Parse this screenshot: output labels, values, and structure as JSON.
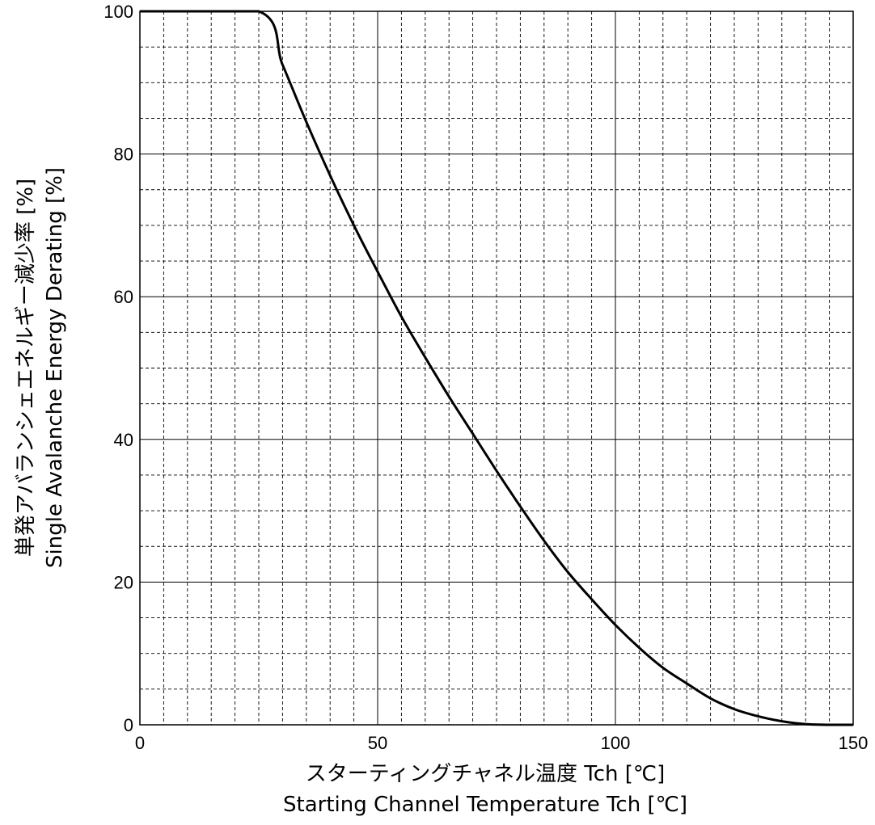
{
  "chart_data": {
    "type": "line",
    "xlabel_ja": "スターティングチャネル温度 Tch [℃]",
    "xlabel_en": "Starting Channel Temperature Tch [℃]",
    "ylabel_ja": "単発アバランシェエネルギー減少率 [%]",
    "ylabel_en": "Single Avalanche Energy Derating [%]",
    "xlim": [
      0,
      150
    ],
    "ylim": [
      0,
      100
    ],
    "x_major_ticks": [
      0,
      50,
      100,
      150
    ],
    "x_tick_labels": [
      "0",
      "50",
      "100",
      "150"
    ],
    "y_major_ticks": [
      0,
      20,
      40,
      60,
      80,
      100
    ],
    "y_tick_labels": [
      "0",
      "20",
      "40",
      "60",
      "80",
      "100"
    ],
    "x_minor_step": 5,
    "y_minor_step": 5,
    "grid": true,
    "series": [
      {
        "x": [
          0,
          25,
          30,
          35,
          40,
          45,
          50,
          55,
          60,
          65,
          70,
          75,
          80,
          85,
          90,
          95,
          100,
          105,
          110,
          115,
          120,
          125,
          130,
          135,
          140,
          145,
          150
        ],
        "y": [
          100,
          100,
          92.5,
          84.5,
          77,
          70,
          63.5,
          57.2,
          51.5,
          46,
          40.8,
          35.6,
          30.6,
          25.8,
          21.4,
          17.6,
          14,
          10.8,
          8,
          5.8,
          3.7,
          2.2,
          1.2,
          0.5,
          0.1,
          0,
          0
        ],
        "color": "#000000"
      }
    ]
  }
}
